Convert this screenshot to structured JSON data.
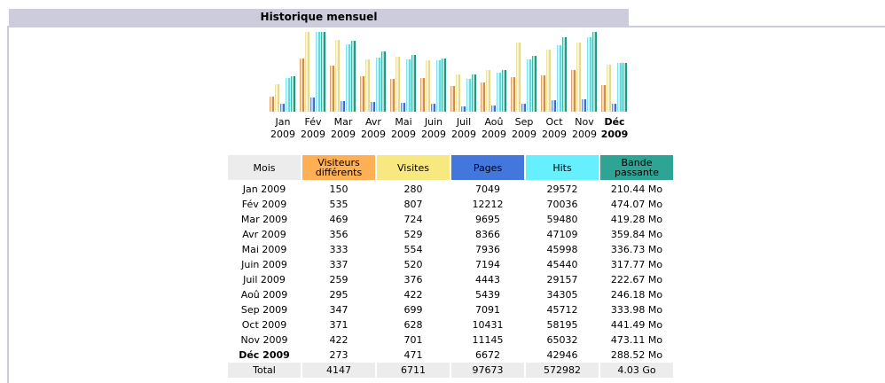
{
  "title": "Historique mensuel",
  "chart": {
    "months": [
      "Jan",
      "Fév",
      "Mar",
      "Avr",
      "Mai",
      "Juin",
      "Juil",
      "Aoû",
      "Sep",
      "Oct",
      "Nov",
      "Déc"
    ],
    "years": [
      "2009",
      "2009",
      "2009",
      "2009",
      "2009",
      "2009",
      "2009",
      "2009",
      "2009",
      "2009",
      "2009",
      "2009"
    ],
    "bar_colors": [
      "#d08a38",
      "#e6d886",
      "#3b68cc",
      "#5ad8e6",
      "#16967c"
    ]
  },
  "table": {
    "headers": [
      "Mois",
      "Visiteurs différents",
      "Visites",
      "Pages",
      "Hits",
      "Bande passante"
    ],
    "header_colors": [
      "#ececec",
      "#ffb055",
      "#f8e880",
      "#4477dd",
      "#66f0ff",
      "#2ea495"
    ],
    "months": [
      "Jan 2009",
      "Fév 2009",
      "Mar 2009",
      "Avr 2009",
      "Mai 2009",
      "Juin 2009",
      "Juil 2009",
      "Aoû 2009",
      "Sep 2009",
      "Oct 2009",
      "Nov 2009",
      "Déc 2009"
    ],
    "visitors": [
      150,
      535,
      469,
      356,
      333,
      337,
      259,
      295,
      347,
      371,
      422,
      273
    ],
    "visits": [
      280,
      807,
      724,
      529,
      554,
      520,
      376,
      422,
      699,
      628,
      701,
      471
    ],
    "pages": [
      7049,
      12212,
      9695,
      8366,
      7936,
      7194,
      4443,
      5439,
      7091,
      10431,
      11145,
      6672
    ],
    "hits": [
      29572,
      70036,
      59480,
      47109,
      45998,
      45440,
      29157,
      34305,
      45712,
      58195,
      65032,
      42946
    ],
    "bandwidth": [
      210.44,
      474.07,
      419.28,
      359.84,
      336.73,
      317.77,
      222.67,
      246.18,
      333.98,
      441.49,
      473.11,
      288.52
    ],
    "bandwidth_labels": [
      "210.44 Mo",
      "474.07 Mo",
      "419.28 Mo",
      "359.84 Mo",
      "336.73 Mo",
      "317.77 Mo",
      "222.67 Mo",
      "246.18 Mo",
      "333.98 Mo",
      "441.49 Mo",
      "473.11 Mo",
      "288.52 Mo"
    ],
    "total": {
      "label": "Total",
      "visitors": 4147,
      "visits": 6711,
      "pages": 97673,
      "hits": 572982,
      "bandwidth": "4.03 Go"
    }
  }
}
